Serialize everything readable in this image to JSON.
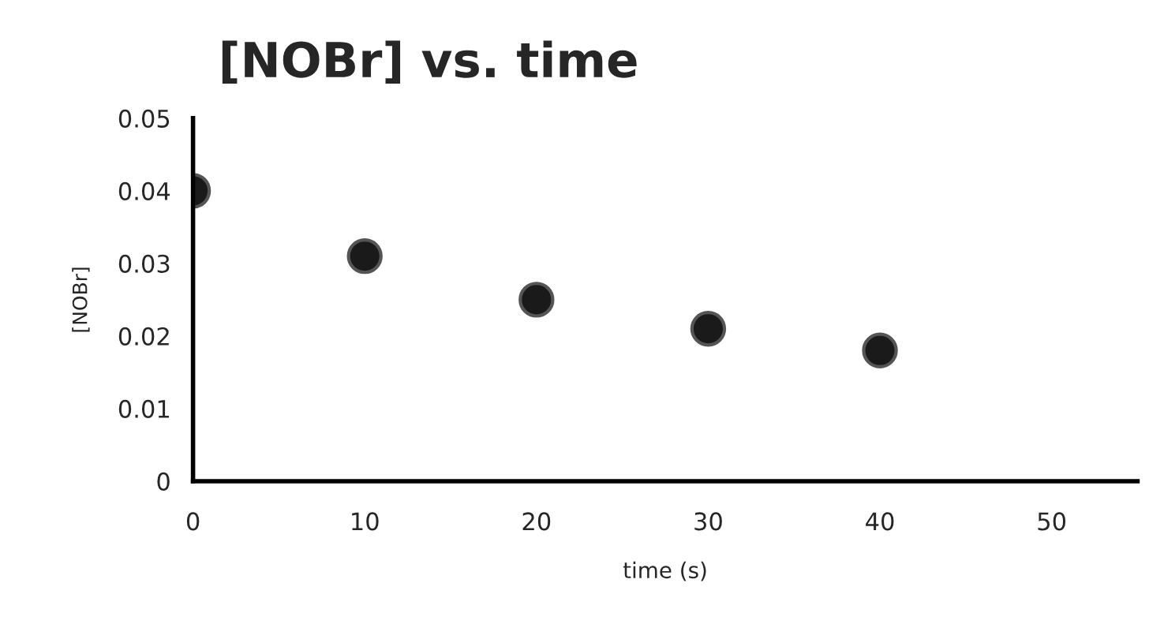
{
  "chart_data": {
    "type": "scatter",
    "title": "[NOBr] vs. time",
    "xlabel": "time (s)",
    "ylabel": "[NOBr]",
    "x": [
      0,
      10,
      20,
      30,
      40
    ],
    "series": [
      {
        "color": "#1a1a1a",
        "values": [
          0.04,
          0.031,
          0.025,
          0.021,
          0.018
        ]
      }
    ],
    "xlim": [
      0,
      55
    ],
    "xticks": [
      0,
      10,
      20,
      30,
      40,
      50
    ],
    "ylim": [
      0,
      0.05
    ],
    "yticks": [
      {
        "value": 0,
        "label": "0"
      },
      0.01,
      0.02,
      0.03,
      0.04,
      0.05
    ],
    "grid": false,
    "legend": false,
    "marker": "circle"
  }
}
